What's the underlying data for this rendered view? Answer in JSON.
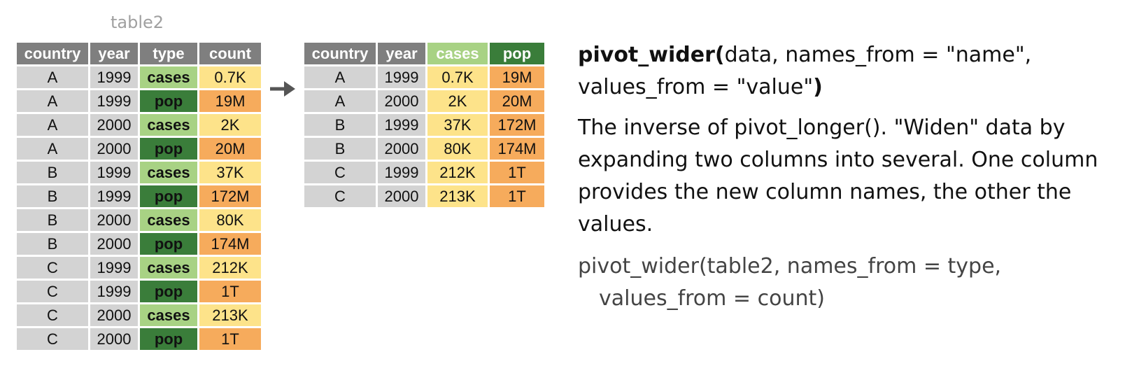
{
  "left_table": {
    "caption": "table2",
    "headers": [
      "country",
      "year",
      "type",
      "count"
    ],
    "rows": [
      [
        "A",
        "1999",
        "cases",
        "0.7K"
      ],
      [
        "A",
        "1999",
        "pop",
        "19M"
      ],
      [
        "A",
        "2000",
        "cases",
        "2K"
      ],
      [
        "A",
        "2000",
        "pop",
        "20M"
      ],
      [
        "B",
        "1999",
        "cases",
        "37K"
      ],
      [
        "B",
        "1999",
        "pop",
        "172M"
      ],
      [
        "B",
        "2000",
        "cases",
        "80K"
      ],
      [
        "B",
        "2000",
        "pop",
        "174M"
      ],
      [
        "C",
        "1999",
        "cases",
        "212K"
      ],
      [
        "C",
        "1999",
        "pop",
        "1T"
      ],
      [
        "C",
        "2000",
        "cases",
        "213K"
      ],
      [
        "C",
        "2000",
        "pop",
        "1T"
      ]
    ]
  },
  "right_table": {
    "headers": [
      "country",
      "year",
      "cases",
      "pop"
    ],
    "rows": [
      [
        "A",
        "1999",
        "0.7K",
        "19M"
      ],
      [
        "A",
        "2000",
        "2K",
        "20M"
      ],
      [
        "B",
        "1999",
        "37K",
        "172M"
      ],
      [
        "B",
        "2000",
        "80K",
        "174M"
      ],
      [
        "C",
        "1999",
        "212K",
        "1T"
      ],
      [
        "C",
        "2000",
        "213K",
        "1T"
      ]
    ]
  },
  "description": {
    "signature_fn": "pivot_wider(",
    "signature_args": "data, names_from = \"name\",",
    "signature_args2": "values_from = \"value\"",
    "signature_close": ")",
    "text": "The inverse of pivot_longer(). \"Widen\" data by expanding two columns into several. One column provides the new column names, the other the values.",
    "example_line1": "pivot_wider(table2, names_from = type,",
    "example_line2": "values_from = count)"
  },
  "colors": {
    "header_gray": "#7f7f7f",
    "cell_gray": "#d3d3d3",
    "cases_green": "#a8d284",
    "pop_green": "#3a7d3a",
    "small_yellow": "#fde38a",
    "big_orange": "#f6ab5c"
  }
}
